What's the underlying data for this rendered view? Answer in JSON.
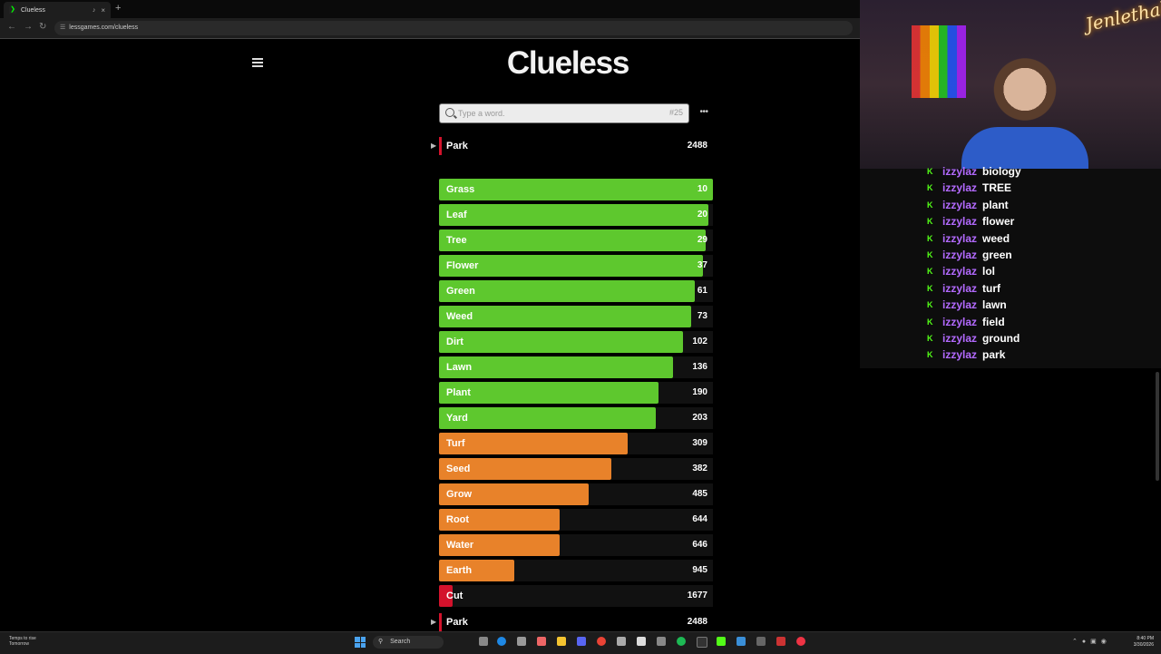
{
  "browser": {
    "tab_title": "Clueless",
    "url": "lessgames.com/clueless"
  },
  "game": {
    "title": "Clueless",
    "search": {
      "placeholder": "Type a word.",
      "number": "#25"
    },
    "current_guess": {
      "word": "Park",
      "score": "2488"
    },
    "guesses": [
      {
        "word": "Grass",
        "score": "10",
        "fill": 1.0,
        "color": "#5ec82e"
      },
      {
        "word": "Leaf",
        "score": "20",
        "fill": 0.985,
        "color": "#5ec82e"
      },
      {
        "word": "Tree",
        "score": "29",
        "fill": 0.975,
        "color": "#5ec82e"
      },
      {
        "word": "Flower",
        "score": "37",
        "fill": 0.965,
        "color": "#5ec82e"
      },
      {
        "word": "Green",
        "score": "61",
        "fill": 0.935,
        "color": "#5ec82e"
      },
      {
        "word": "Weed",
        "score": "73",
        "fill": 0.92,
        "color": "#5ec82e"
      },
      {
        "word": "Dirt",
        "score": "102",
        "fill": 0.89,
        "color": "#5ec82e"
      },
      {
        "word": "Lawn",
        "score": "136",
        "fill": 0.855,
        "color": "#5ec82e"
      },
      {
        "word": "Plant",
        "score": "190",
        "fill": 0.8,
        "color": "#5ec82e"
      },
      {
        "word": "Yard",
        "score": "203",
        "fill": 0.79,
        "color": "#5ec82e"
      },
      {
        "word": "Turf",
        "score": "309",
        "fill": 0.69,
        "color": "#e8822a"
      },
      {
        "word": "Seed",
        "score": "382",
        "fill": 0.63,
        "color": "#e8822a"
      },
      {
        "word": "Grow",
        "score": "485",
        "fill": 0.545,
        "color": "#e8822a"
      },
      {
        "word": "Root",
        "score": "644",
        "fill": 0.44,
        "color": "#e8822a"
      },
      {
        "word": "Water",
        "score": "646",
        "fill": 0.44,
        "color": "#e8822a"
      },
      {
        "word": "Earth",
        "score": "945",
        "fill": 0.275,
        "color": "#e8822a"
      },
      {
        "word": "Cut",
        "score": "1677",
        "fill": 0.05,
        "color": "#d3122c"
      }
    ],
    "last_guess": {
      "word": "Park",
      "score": "2488"
    }
  },
  "stream": {
    "neon_sign": "Jenlethal",
    "chat": [
      {
        "user": "izzylaz",
        "msg": "biology"
      },
      {
        "user": "izzylaz",
        "msg": "TREE"
      },
      {
        "user": "izzylaz",
        "msg": "plant"
      },
      {
        "user": "izzylaz",
        "msg": "flower"
      },
      {
        "user": "izzylaz",
        "msg": "weed"
      },
      {
        "user": "izzylaz",
        "msg": "green"
      },
      {
        "user": "izzylaz",
        "msg": "lol"
      },
      {
        "user": "izzylaz",
        "msg": "turf"
      },
      {
        "user": "izzylaz",
        "msg": "lawn"
      },
      {
        "user": "izzylaz",
        "msg": "field"
      },
      {
        "user": "izzylaz",
        "msg": "ground"
      },
      {
        "user": "izzylaz",
        "msg": "park"
      }
    ]
  },
  "taskbar": {
    "weather_line1": "Temps to rise",
    "weather_line2": "Tomorrow",
    "search_label": "Search",
    "time": "8:40 PM",
    "date": "3/30/2026"
  }
}
